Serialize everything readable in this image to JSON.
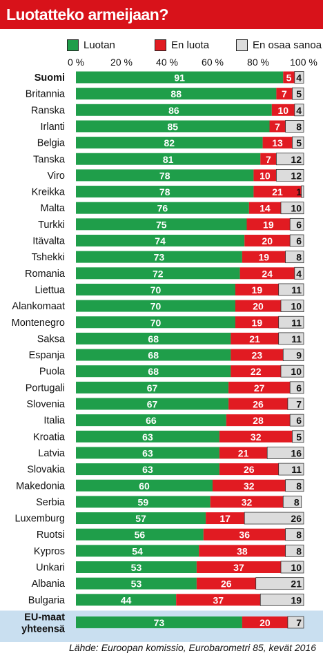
{
  "title": "Luotatteko armeijaan?",
  "source": "Lähde: Euroopan komissio, Eurobarometri 85, kevät 2016",
  "colors": {
    "green": "#1f9e4a",
    "red": "#e11b22",
    "gray": "#dcdcdc",
    "header": "#d8121a",
    "highlight": "#c9dff0"
  },
  "chart_data": {
    "type": "bar",
    "orientation": "horizontal",
    "stacked": true,
    "xlim": [
      0,
      100
    ],
    "tick_labels": [
      "0 %",
      "20 %",
      "40 %",
      "60 %",
      "80 %",
      "100 %"
    ],
    "series": [
      {
        "name": "Luotan",
        "color": "#1f9e4a",
        "values": [
          91,
          88,
          86,
          85,
          82,
          81,
          78,
          78,
          76,
          75,
          74,
          73,
          72,
          70,
          70,
          70,
          68,
          68,
          68,
          67,
          67,
          66,
          63,
          63,
          63,
          60,
          59,
          57,
          56,
          54,
          53,
          53,
          44,
          73
        ]
      },
      {
        "name": "En luota",
        "color": "#e11b22",
        "values": [
          5,
          7,
          10,
          7,
          13,
          7,
          10,
          21,
          14,
          19,
          20,
          19,
          24,
          19,
          20,
          19,
          21,
          23,
          22,
          27,
          26,
          28,
          32,
          21,
          26,
          32,
          32,
          17,
          36,
          38,
          37,
          26,
          37,
          20
        ]
      },
      {
        "name": "En osaa sanoa",
        "color": "#dcdcdc",
        "values": [
          4,
          5,
          4,
          8,
          5,
          12,
          12,
          1,
          10,
          6,
          6,
          8,
          4,
          11,
          10,
          11,
          11,
          9,
          10,
          6,
          7,
          6,
          5,
          16,
          11,
          8,
          8,
          26,
          8,
          8,
          10,
          21,
          19,
          7
        ]
      }
    ],
    "categories": [
      "Suomi",
      "Britannia",
      "Ranska",
      "Irlanti",
      "Belgia",
      "Tanska",
      "Viro",
      "Kreikka",
      "Malta",
      "Turkki",
      "Itävalta",
      "Tshekki",
      "Romania",
      "Liettua",
      "Alankomaat",
      "Montenegro",
      "Saksa",
      "Espanja",
      "Puola",
      "Portugali",
      "Slovenia",
      "Italia",
      "Kroatia",
      "Latvia",
      "Slovakia",
      "Makedonia",
      "Serbia",
      "Luxemburg",
      "Ruotsi",
      "Kypros",
      "Unkari",
      "Albania",
      "Bulgaria",
      "EU-maat yhteensä"
    ],
    "bold_categories": [
      "Suomi",
      "EU-maat yhteensä"
    ]
  }
}
